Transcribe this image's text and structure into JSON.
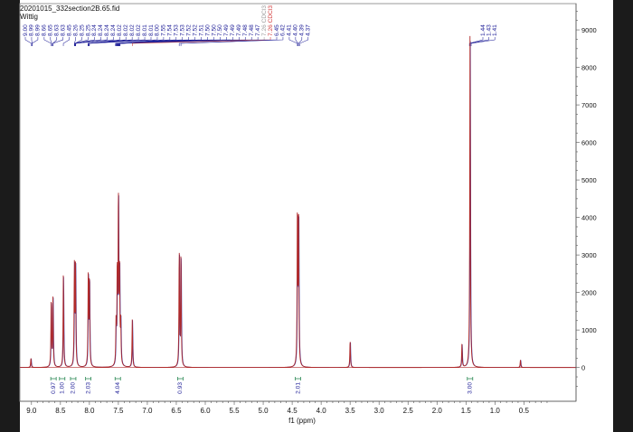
{
  "file": {
    "name": "20201015_332section2B.65.fid",
    "subtitle": "Wittig"
  },
  "chart_data": {
    "type": "line",
    "xlabel": "f1 (ppm)",
    "ylabel": "",
    "xlim": [
      9.2,
      -0.4
    ],
    "ylim": [
      -900,
      9700
    ],
    "x_reversed": true,
    "x_ticks": [
      "9.0",
      "8.5",
      "8.0",
      "7.5",
      "7.0",
      "6.5",
      "6.0",
      "5.5",
      "5.0",
      "4.5",
      "4.0",
      "3.5",
      "3.0",
      "2.5",
      "2.0",
      "1.5",
      "1.0",
      "0.5"
    ],
    "y_ticks": [
      "9000",
      "8000",
      "7000",
      "6000",
      "5000",
      "4000",
      "3000",
      "2000",
      "1000",
      "0"
    ],
    "grid": false,
    "colors": {
      "spectrum": "#b02a2a",
      "overlay": "#3a3aa8",
      "peak_labels": "#24249a",
      "solvent_labels": "#d23a3a",
      "integrals": "#2e8b57"
    },
    "peak_labels": [
      "9.00",
      "8.99",
      "8.99",
      "8.66",
      "8.65",
      "8.63",
      "8.63",
      "8.45",
      "8.26",
      "8.25",
      "8.25",
      "8.24",
      "8.24",
      "8.24",
      "8.24",
      "8.02",
      "8.02",
      "8.02",
      "8.02",
      "8.01",
      "8.01",
      "8.00",
      "7.55",
      "7.54",
      "7.53",
      "7.53",
      "7.52",
      "7.52",
      "7.51",
      "7.50",
      "7.50",
      "7.50",
      "7.49",
      "7.49",
      "7.49",
      "7.48",
      "7.48",
      "7.47"
    ],
    "solvent_labels": [
      "7.26 CDCl3",
      "7.26 CDCl3"
    ],
    "peak_labels_right": [
      "6.45",
      "6.42",
      "4.41",
      "4.40",
      "4.39",
      "4.37"
    ],
    "peak_labels_far": [
      "1.44",
      "1.43",
      "1.41"
    ],
    "peaks": [
      {
        "x": 9.01,
        "y": 250
      },
      {
        "x": 8.66,
        "y": 1780
      },
      {
        "x": 8.63,
        "y": 1820
      },
      {
        "x": 8.45,
        "y": 2480
      },
      {
        "x": 8.26,
        "y": 2650
      },
      {
        "x": 8.24,
        "y": 2600
      },
      {
        "x": 8.02,
        "y": 2500
      },
      {
        "x": 8.0,
        "y": 2350
      },
      {
        "x": 7.54,
        "y": 1150
      },
      {
        "x": 7.52,
        "y": 2450
      },
      {
        "x": 7.5,
        "y": 4450
      },
      {
        "x": 7.48,
        "y": 2400
      },
      {
        "x": 7.46,
        "y": 1100
      },
      {
        "x": 7.26,
        "y": 1280
      },
      {
        "x": 6.45,
        "y": 3050
      },
      {
        "x": 6.42,
        "y": 3000
      },
      {
        "x": 4.41,
        "y": 4150
      },
      {
        "x": 4.39,
        "y": 4100
      },
      {
        "x": 3.5,
        "y": 720
      },
      {
        "x": 1.57,
        "y": 620
      },
      {
        "x": 1.43,
        "y": 8850
      },
      {
        "x": 0.56,
        "y": 200
      }
    ],
    "integrals": [
      {
        "x": 8.62,
        "label": "0.97"
      },
      {
        "x": 8.47,
        "label": "1.00"
      },
      {
        "x": 8.28,
        "label": "2.00"
      },
      {
        "x": 8.02,
        "label": "2.03"
      },
      {
        "x": 7.51,
        "label": "4.04"
      },
      {
        "x": 6.43,
        "label": "0.93"
      },
      {
        "x": 4.4,
        "label": "2.01"
      },
      {
        "x": 1.43,
        "label": "3.00"
      }
    ]
  }
}
